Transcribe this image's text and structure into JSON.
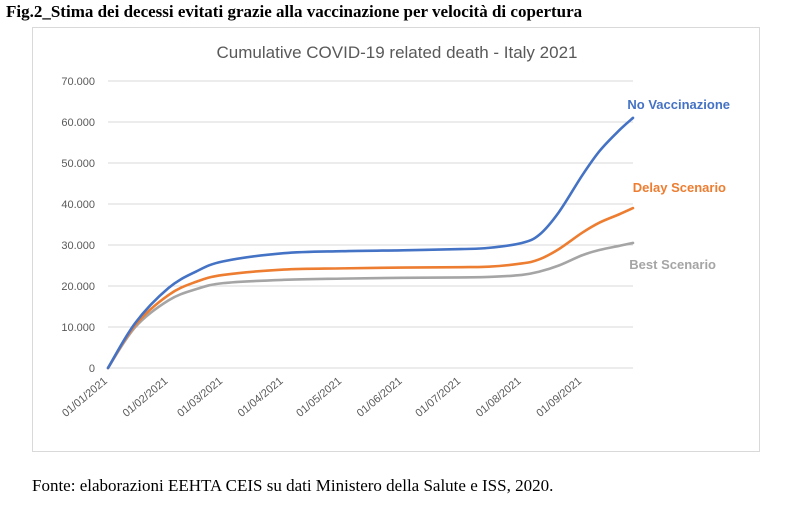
{
  "figure": {
    "title": "Fig.2_Stima dei decessi evitati grazie alla vaccinazione per velocità di copertura",
    "source": "Fonte: elaborazioni EEHTA CEIS su dati Ministero della Salute e ISS, 2020."
  },
  "chart_data": {
    "type": "line",
    "title": "Cumulative COVID-19 related death - Italy 2021",
    "xlabel": "",
    "ylabel": "",
    "ylim": [
      0,
      70000
    ],
    "y_ticks": [
      "0",
      "10.000",
      "20.000",
      "30.000",
      "40.000",
      "50.000",
      "60.000",
      "70.000"
    ],
    "x_ticks": [
      "01/01/2021",
      "01/02/2021",
      "01/03/2021",
      "01/04/2021",
      "01/05/2021",
      "01/06/2021",
      "01/07/2021",
      "01/08/2021",
      "01/09/2021"
    ],
    "grid": true,
    "x": [
      "2021-01-01",
      "2021-01-15",
      "2021-02-01",
      "2021-02-15",
      "2021-03-01",
      "2021-04-01",
      "2021-05-01",
      "2021-06-01",
      "2021-07-01",
      "2021-07-15",
      "2021-08-01",
      "2021-08-10",
      "2021-08-20",
      "2021-09-01",
      "2021-09-10",
      "2021-09-20",
      "2021-09-27"
    ],
    "series": [
      {
        "name": "No Vaccinazione",
        "color": "#4472c4",
        "values": [
          0,
          11000,
          19500,
          23500,
          26000,
          28000,
          28500,
          28700,
          29000,
          29300,
          30500,
          32500,
          38000,
          47000,
          53000,
          58000,
          61000
        ]
      },
      {
        "name": "Delay Scenario",
        "color": "#ed7d31",
        "values": [
          0,
          10500,
          17800,
          21000,
          22700,
          24000,
          24300,
          24500,
          24600,
          24700,
          25500,
          26500,
          29000,
          33000,
          35500,
          37500,
          39000
        ]
      },
      {
        "name": "Best Scenario",
        "color": "#a5a5a5",
        "values": [
          0,
          10000,
          16500,
          19200,
          20700,
          21500,
          21800,
          22000,
          22100,
          22200,
          22700,
          23500,
          25000,
          27500,
          28800,
          29800,
          30500
        ]
      }
    ]
  }
}
